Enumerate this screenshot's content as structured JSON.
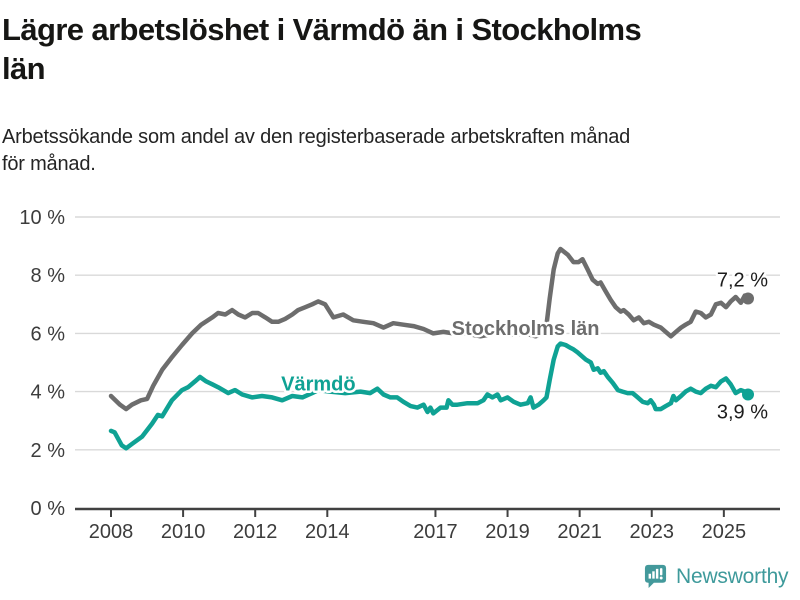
{
  "header": {
    "title_lines": [
      "Lägre arbetslöshet i Värmdö än i Stockholms",
      "län"
    ],
    "subtitle_lines": [
      "Arbetssökande som andel av den registerbaserade arbetskraften månad",
      "för månad."
    ]
  },
  "footer": {
    "brand": "Newsworthy"
  },
  "theme": {
    "series_gray": "#6d6d6d",
    "accent_teal": "#0fa294",
    "logo_teal": "#43999b",
    "gridline": "#d9d9d9",
    "axis_line": "#414141",
    "axis_text": "#3c3c3c"
  },
  "chart_data": {
    "type": "line",
    "title": "Lägre arbetslöshet i Värmdö än i Stockholms län",
    "subtitle": "Arbetssökande som andel av den registerbaserade arbetskraften månad för månad.",
    "xlabel": "",
    "ylabel": "",
    "unit": "%",
    "ylim": [
      0,
      10
    ],
    "xlim": [
      2008,
      2025.67
    ],
    "grid": true,
    "legend_position": "inline-labels",
    "yticks": [
      {
        "value": 0,
        "label": "0 %"
      },
      {
        "value": 2,
        "label": "2 %"
      },
      {
        "value": 4,
        "label": "4 %"
      },
      {
        "value": 6,
        "label": "6 %"
      },
      {
        "value": 8,
        "label": "8 %"
      },
      {
        "value": 10,
        "label": "10 %"
      }
    ],
    "xticks": [
      {
        "value": 2008,
        "label": "2008"
      },
      {
        "value": 2010,
        "label": "2010"
      },
      {
        "value": 2012,
        "label": "2012"
      },
      {
        "value": 2014,
        "label": "2014"
      },
      {
        "value": 2017,
        "label": "2017"
      },
      {
        "value": 2019,
        "label": "2019"
      },
      {
        "value": 2021,
        "label": "2021"
      },
      {
        "value": 2023,
        "label": "2023"
      },
      {
        "value": 2025,
        "label": "2025"
      }
    ],
    "series": [
      {
        "name": "Stockholms län",
        "color": "#6d6d6d",
        "end_label": "7,2 %",
        "end_value": 7.2,
        "label_at": {
          "x": 2017.45,
          "y": 5.95
        },
        "end_label_offset": {
          "dx": 20,
          "dy": -12
        },
        "points": [
          [
            2008.0,
            3.85
          ],
          [
            2008.25,
            3.55
          ],
          [
            2008.42,
            3.4
          ],
          [
            2008.58,
            3.55
          ],
          [
            2008.83,
            3.7
          ],
          [
            2009.0,
            3.75
          ],
          [
            2009.17,
            4.2
          ],
          [
            2009.42,
            4.75
          ],
          [
            2009.67,
            5.15
          ],
          [
            2009.97,
            5.6
          ],
          [
            2010.25,
            6.0
          ],
          [
            2010.5,
            6.3
          ],
          [
            2010.81,
            6.55
          ],
          [
            2010.97,
            6.7
          ],
          [
            2011.17,
            6.65
          ],
          [
            2011.36,
            6.8
          ],
          [
            2011.53,
            6.65
          ],
          [
            2011.72,
            6.55
          ],
          [
            2011.92,
            6.7
          ],
          [
            2012.08,
            6.7
          ],
          [
            2012.28,
            6.55
          ],
          [
            2012.47,
            6.4
          ],
          [
            2012.64,
            6.4
          ],
          [
            2012.83,
            6.5
          ],
          [
            2013.03,
            6.65
          ],
          [
            2013.19,
            6.8
          ],
          [
            2013.39,
            6.9
          ],
          [
            2013.58,
            7.0
          ],
          [
            2013.75,
            7.1
          ],
          [
            2013.94,
            7.0
          ],
          [
            2014.17,
            6.55
          ],
          [
            2014.44,
            6.65
          ],
          [
            2014.72,
            6.45
          ],
          [
            2015.0,
            6.4
          ],
          [
            2015.28,
            6.35
          ],
          [
            2015.56,
            6.2
          ],
          [
            2015.83,
            6.35
          ],
          [
            2016.11,
            6.3
          ],
          [
            2016.39,
            6.25
          ],
          [
            2016.67,
            6.15
          ],
          [
            2016.94,
            6.0
          ],
          [
            2017.22,
            6.05
          ],
          [
            2017.5,
            6.0
          ],
          [
            2017.83,
            6.0
          ],
          [
            2018.25,
            5.9
          ],
          [
            2018.67,
            6.0
          ],
          [
            2019.08,
            5.95
          ],
          [
            2019.5,
            6.0
          ],
          [
            2019.78,
            5.9
          ],
          [
            2020.0,
            6.0
          ],
          [
            2020.08,
            6.3
          ],
          [
            2020.17,
            7.2
          ],
          [
            2020.28,
            8.2
          ],
          [
            2020.39,
            8.75
          ],
          [
            2020.47,
            8.9
          ],
          [
            2020.67,
            8.7
          ],
          [
            2020.83,
            8.45
          ],
          [
            2020.97,
            8.45
          ],
          [
            2021.08,
            8.55
          ],
          [
            2021.22,
            8.2
          ],
          [
            2021.36,
            7.85
          ],
          [
            2021.5,
            7.7
          ],
          [
            2021.58,
            7.75
          ],
          [
            2021.72,
            7.45
          ],
          [
            2021.86,
            7.15
          ],
          [
            2022.0,
            6.9
          ],
          [
            2022.14,
            6.75
          ],
          [
            2022.22,
            6.8
          ],
          [
            2022.36,
            6.65
          ],
          [
            2022.5,
            6.45
          ],
          [
            2022.64,
            6.55
          ],
          [
            2022.78,
            6.35
          ],
          [
            2022.92,
            6.4
          ],
          [
            2023.06,
            6.3
          ],
          [
            2023.25,
            6.2
          ],
          [
            2023.39,
            6.05
          ],
          [
            2023.53,
            5.9
          ],
          [
            2023.67,
            6.05
          ],
          [
            2023.81,
            6.2
          ],
          [
            2023.94,
            6.3
          ],
          [
            2024.08,
            6.4
          ],
          [
            2024.22,
            6.75
          ],
          [
            2024.36,
            6.7
          ],
          [
            2024.5,
            6.55
          ],
          [
            2024.64,
            6.65
          ],
          [
            2024.78,
            7.0
          ],
          [
            2024.92,
            7.05
          ],
          [
            2025.06,
            6.9
          ],
          [
            2025.19,
            7.1
          ],
          [
            2025.33,
            7.25
          ],
          [
            2025.47,
            7.05
          ],
          [
            2025.58,
            7.3
          ],
          [
            2025.67,
            7.2
          ]
        ]
      },
      {
        "name": "Värmdö",
        "color": "#0fa294",
        "end_label": "3,9 %",
        "end_value": 3.9,
        "label_at": {
          "x": 2012.72,
          "y": 4.03
        },
        "end_label_offset": {
          "dx": 20,
          "dy": 24
        },
        "points": [
          [
            2008.0,
            2.65
          ],
          [
            2008.1,
            2.6
          ],
          [
            2008.3,
            2.15
          ],
          [
            2008.42,
            2.05
          ],
          [
            2008.58,
            2.2
          ],
          [
            2008.86,
            2.45
          ],
          [
            2009.14,
            2.9
          ],
          [
            2009.3,
            3.2
          ],
          [
            2009.42,
            3.15
          ],
          [
            2009.69,
            3.7
          ],
          [
            2009.97,
            4.05
          ],
          [
            2010.14,
            4.15
          ],
          [
            2010.33,
            4.35
          ],
          [
            2010.47,
            4.5
          ],
          [
            2010.64,
            4.35
          ],
          [
            2010.81,
            4.25
          ],
          [
            2010.97,
            4.15
          ],
          [
            2011.25,
            3.95
          ],
          [
            2011.44,
            4.05
          ],
          [
            2011.64,
            3.9
          ],
          [
            2011.92,
            3.8
          ],
          [
            2012.19,
            3.85
          ],
          [
            2012.47,
            3.8
          ],
          [
            2012.75,
            3.7
          ],
          [
            2013.03,
            3.85
          ],
          [
            2013.31,
            3.8
          ],
          [
            2013.58,
            3.95
          ],
          [
            2013.75,
            4.05
          ],
          [
            2014.08,
            4.0
          ],
          [
            2014.5,
            3.95
          ],
          [
            2014.92,
            4.0
          ],
          [
            2015.19,
            3.95
          ],
          [
            2015.39,
            4.1
          ],
          [
            2015.56,
            3.9
          ],
          [
            2015.75,
            3.8
          ],
          [
            2015.94,
            3.8
          ],
          [
            2016.11,
            3.65
          ],
          [
            2016.31,
            3.5
          ],
          [
            2016.5,
            3.45
          ],
          [
            2016.67,
            3.55
          ],
          [
            2016.78,
            3.3
          ],
          [
            2016.86,
            3.45
          ],
          [
            2016.94,
            3.25
          ],
          [
            2017.14,
            3.45
          ],
          [
            2017.31,
            3.45
          ],
          [
            2017.36,
            3.7
          ],
          [
            2017.47,
            3.55
          ],
          [
            2017.61,
            3.55
          ],
          [
            2017.89,
            3.6
          ],
          [
            2018.17,
            3.6
          ],
          [
            2018.33,
            3.7
          ],
          [
            2018.44,
            3.9
          ],
          [
            2018.58,
            3.8
          ],
          [
            2018.72,
            3.9
          ],
          [
            2018.81,
            3.7
          ],
          [
            2019.0,
            3.8
          ],
          [
            2019.17,
            3.65
          ],
          [
            2019.36,
            3.55
          ],
          [
            2019.56,
            3.6
          ],
          [
            2019.64,
            3.8
          ],
          [
            2019.72,
            3.45
          ],
          [
            2019.86,
            3.55
          ],
          [
            2020.0,
            3.7
          ],
          [
            2020.08,
            3.8
          ],
          [
            2020.17,
            4.4
          ],
          [
            2020.28,
            5.1
          ],
          [
            2020.39,
            5.55
          ],
          [
            2020.47,
            5.65
          ],
          [
            2020.61,
            5.6
          ],
          [
            2020.75,
            5.5
          ],
          [
            2020.83,
            5.45
          ],
          [
            2020.94,
            5.35
          ],
          [
            2021.08,
            5.2
          ],
          [
            2021.17,
            5.1
          ],
          [
            2021.31,
            5.0
          ],
          [
            2021.39,
            4.75
          ],
          [
            2021.5,
            4.8
          ],
          [
            2021.58,
            4.65
          ],
          [
            2021.67,
            4.7
          ],
          [
            2021.78,
            4.5
          ],
          [
            2021.92,
            4.3
          ],
          [
            2022.06,
            4.05
          ],
          [
            2022.19,
            4.0
          ],
          [
            2022.33,
            3.95
          ],
          [
            2022.47,
            3.95
          ],
          [
            2022.61,
            3.8
          ],
          [
            2022.75,
            3.65
          ],
          [
            2022.89,
            3.6
          ],
          [
            2022.97,
            3.7
          ],
          [
            2023.06,
            3.55
          ],
          [
            2023.11,
            3.4
          ],
          [
            2023.25,
            3.4
          ],
          [
            2023.39,
            3.5
          ],
          [
            2023.53,
            3.6
          ],
          [
            2023.6,
            3.85
          ],
          [
            2023.67,
            3.7
          ],
          [
            2023.81,
            3.85
          ],
          [
            2023.94,
            4.0
          ],
          [
            2024.08,
            4.1
          ],
          [
            2024.22,
            4.0
          ],
          [
            2024.36,
            3.95
          ],
          [
            2024.5,
            4.1
          ],
          [
            2024.64,
            4.2
          ],
          [
            2024.78,
            4.15
          ],
          [
            2024.92,
            4.35
          ],
          [
            2025.06,
            4.45
          ],
          [
            2025.19,
            4.25
          ],
          [
            2025.33,
            3.95
          ],
          [
            2025.47,
            4.05
          ],
          [
            2025.58,
            4.0
          ],
          [
            2025.67,
            3.9
          ]
        ]
      }
    ]
  }
}
